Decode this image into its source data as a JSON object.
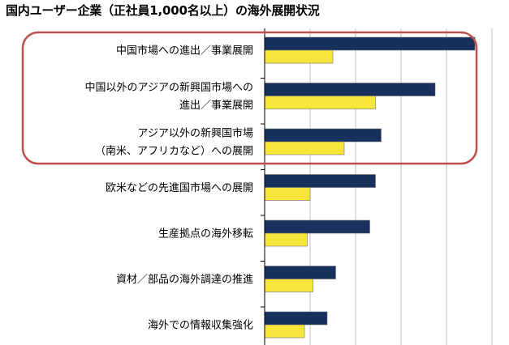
{
  "chart_data": {
    "type": "bar",
    "orientation": "horizontal",
    "title": "国内ユーザー企業（正社員1,000名以上）の海外展開状況",
    "categories": [
      [
        "中国市場への進出／事業展開"
      ],
      [
        "中国以外のアジアの新興国市場への",
        "進出／事業展開"
      ],
      [
        "アジア以外の新興国市場",
        "（南米、アフリカなど）への展開"
      ],
      [
        "欧米などの先進国市場への展開"
      ],
      [
        "生産拠点の海外移転"
      ],
      [
        "資材／部品の海外調達の推進"
      ],
      [
        "海外での情報収集強化"
      ]
    ],
    "series": [
      {
        "name": "series-1",
        "color": "#17305e",
        "values": [
          37.0,
          30.0,
          20.5,
          19.5,
          18.5,
          12.5,
          11.0
        ]
      },
      {
        "name": "series-2",
        "color": "#f7e53c",
        "values": [
          12.0,
          19.5,
          14.0,
          8.0,
          7.5,
          8.5,
          7.0
        ]
      }
    ],
    "xlim": [
      0,
      40
    ],
    "grid": true,
    "highlight": {
      "categories": [
        0,
        1,
        2
      ],
      "color": "#c0504d"
    }
  }
}
